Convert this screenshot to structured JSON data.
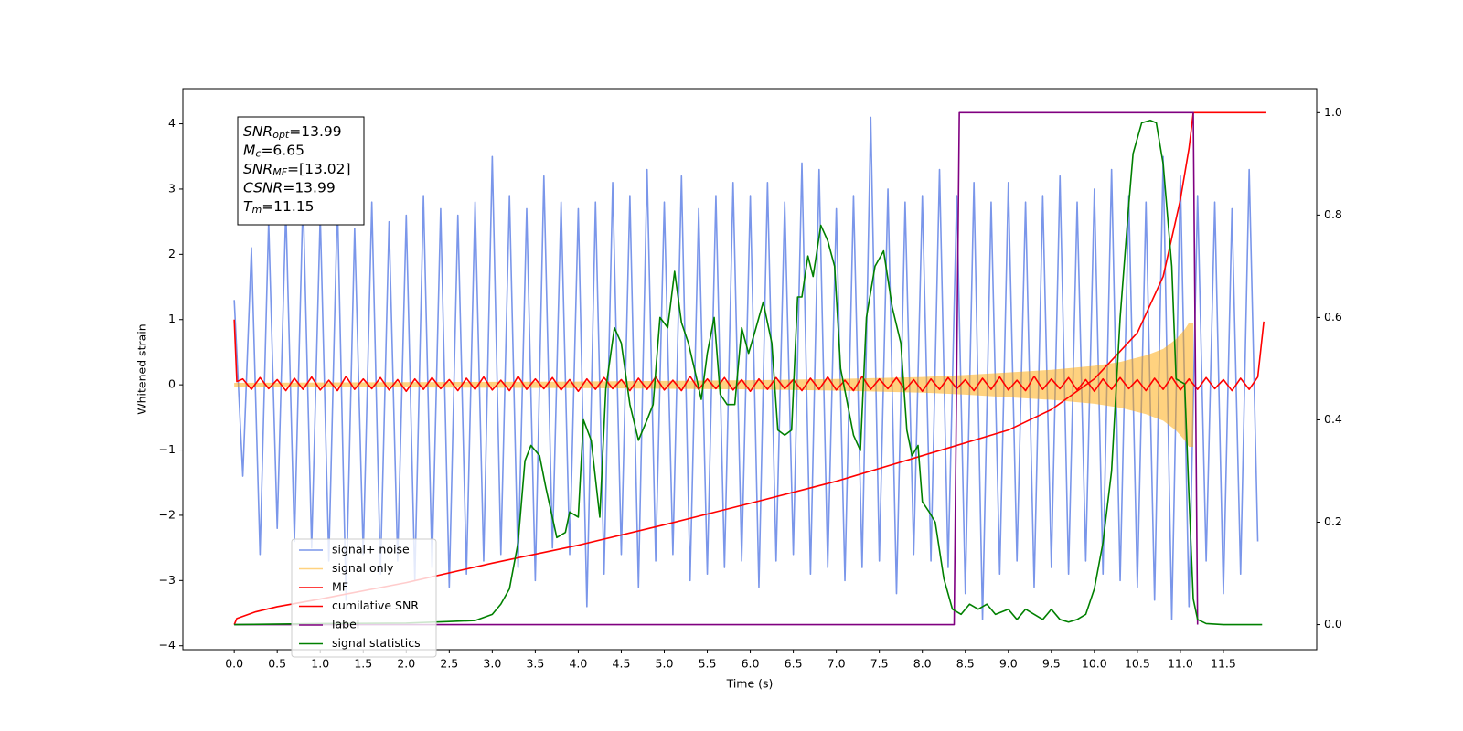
{
  "chart_data": {
    "type": "line",
    "xlabel": "Time (s)",
    "ylabel": "Whitened strain",
    "xlim": [
      -0.597,
      12.585
    ],
    "ylim": [
      -4.06,
      4.54
    ],
    "y2lim": [
      -0.049,
      1.047
    ],
    "xticks": [
      {
        "value": 0,
        "label": "0.0"
      },
      0.5,
      {
        "value": 1,
        "label": "1.0"
      },
      1.5,
      {
        "value": 2,
        "label": "2.0"
      },
      2.5,
      {
        "value": 3,
        "label": "3.0"
      },
      3.5,
      {
        "value": 4,
        "label": "4.0"
      },
      4.5,
      {
        "value": 5,
        "label": "5.0"
      },
      5.5,
      {
        "value": 6,
        "label": "6.0"
      },
      6.5,
      {
        "value": 7,
        "label": "7.0"
      },
      7.5,
      {
        "value": 8,
        "label": "8.0"
      },
      8.5,
      {
        "value": 9,
        "label": "9.0"
      },
      9.5,
      {
        "value": 10,
        "label": "10.0"
      },
      10.5,
      {
        "value": 11,
        "label": "11.0"
      },
      11.5
    ],
    "yticks": [
      {
        "value": -4,
        "label": "−4"
      },
      {
        "value": -3,
        "label": "−3"
      },
      {
        "value": -2,
        "label": "−2"
      },
      {
        "value": -1,
        "label": "−1"
      },
      0,
      1,
      2,
      3,
      4
    ],
    "y2ticks": [
      {
        "value": 0,
        "label": "0.0"
      },
      0.2,
      0.4,
      0.6,
      0.8,
      {
        "value": 1,
        "label": "1.0"
      }
    ],
    "legend": "lower left",
    "annotations": [
      {
        "text": "SNR",
        "sub": "opt",
        "value": "=13.99"
      },
      {
        "text": "M",
        "sub": "c",
        "value": "=6.65"
      },
      {
        "text": "SNR",
        "sub": "MF",
        "value": "=[13.02]"
      },
      {
        "text": "CSNR",
        "value": "=13.99"
      },
      {
        "text": "T",
        "sub": "m",
        "value": "=11.15"
      }
    ],
    "series": [
      {
        "name": "signal+ noise",
        "color": "#4169e1",
        "alpha": 0.7,
        "axis": "y",
        "x": [
          0,
          0.1,
          0.2,
          0.3,
          0.4,
          0.5,
          0.6,
          0.7,
          0.8,
          0.9,
          1,
          1.1,
          1.2,
          1.3,
          1.4,
          1.5,
          1.6,
          1.7,
          1.8,
          1.9,
          2,
          2.1,
          2.2,
          2.3,
          2.4,
          2.5,
          2.6,
          2.7,
          2.8,
          2.9,
          3,
          3.1,
          3.2,
          3.3,
          3.4,
          3.5,
          3.6,
          3.7,
          3.8,
          3.9,
          4,
          4.1,
          4.2,
          4.3,
          4.4,
          4.5,
          4.6,
          4.7,
          4.8,
          4.9,
          5,
          5.1,
          5.2,
          5.3,
          5.4,
          5.5,
          5.6,
          5.7,
          5.8,
          5.9,
          6,
          6.1,
          6.2,
          6.3,
          6.4,
          6.5,
          6.6,
          6.7,
          6.8,
          6.9,
          7,
          7.1,
          7.2,
          7.3,
          7.4,
          7.5,
          7.6,
          7.7,
          7.8,
          7.9,
          8,
          8.1,
          8.2,
          8.3,
          8.4,
          8.5,
          8.6,
          8.7,
          8.8,
          8.9,
          9,
          9.1,
          9.2,
          9.3,
          9.4,
          9.5,
          9.6,
          9.7,
          9.8,
          9.9,
          10,
          10.1,
          10.2,
          10.3,
          10.4,
          10.5,
          10.6,
          10.7,
          10.8,
          10.9,
          11,
          11.1,
          11.2,
          11.3,
          11.4,
          11.5,
          11.6,
          11.7,
          11.8,
          11.9
        ],
        "values": [
          1.3,
          -1.4,
          2.1,
          -2.6,
          2.5,
          -2.2,
          2.7,
          -2.4,
          2.9,
          -2.5,
          2.6,
          -2.7,
          2.8,
          -3.3,
          2.4,
          -2.6,
          2.8,
          -2.9,
          2.5,
          -2.7,
          2.6,
          -3.0,
          2.9,
          -2.8,
          2.7,
          -3.1,
          2.6,
          -2.9,
          2.8,
          -2.7,
          3.5,
          -2.6,
          2.9,
          -2.8,
          2.7,
          -3.0,
          3.2,
          -2.5,
          2.8,
          -2.6,
          2.7,
          -3.4,
          2.8,
          -2.9,
          3.1,
          -2.6,
          2.9,
          -3.1,
          3.3,
          -2.7,
          2.8,
          -2.6,
          3.2,
          -3.0,
          2.7,
          -2.9,
          2.9,
          -2.8,
          3.1,
          -2.7,
          2.9,
          -3.1,
          3.1,
          -2.7,
          2.8,
          -2.6,
          3.4,
          -2.9,
          3.3,
          -2.8,
          2.7,
          -3.0,
          2.9,
          -2.8,
          4.1,
          -2.7,
          3.0,
          -3.2,
          2.8,
          -2.6,
          2.9,
          -2.7,
          3.3,
          -2.8,
          2.9,
          -3.2,
          3.1,
          -3.6,
          2.8,
          -2.9,
          3.1,
          -2.7,
          2.8,
          -3.1,
          2.9,
          -2.8,
          3.2,
          -2.9,
          2.8,
          -2.7,
          3.0,
          -2.9,
          3.3,
          -3.0,
          2.9,
          -3.1,
          2.8,
          -3.3,
          3.5,
          -3.6,
          3.2,
          -3.4,
          2.9,
          -2.7,
          2.8,
          -3.2,
          2.7,
          -2.9,
          3.3,
          -2.4
        ]
      },
      {
        "name": "signal only",
        "color": "#ffa500",
        "alpha": 0.5,
        "axis": "y",
        "fill_between": true,
        "x": [
          0,
          2,
          4,
          6,
          7,
          8,
          8.5,
          9,
          9.5,
          10,
          10.3,
          10.6,
          10.8,
          10.95,
          11.05,
          11.1,
          11.15
        ],
        "values": [
          0.03,
          0.04,
          0.05,
          0.07,
          0.09,
          0.12,
          0.15,
          0.19,
          0.23,
          0.29,
          0.35,
          0.45,
          0.55,
          0.7,
          0.85,
          0.95,
          0.95
        ]
      },
      {
        "name": "MF",
        "color": "#ff0000",
        "axis": "y",
        "x": [
          0,
          0.03,
          0.1,
          0.2,
          0.3,
          0.4,
          0.5,
          0.6,
          0.7,
          0.8,
          0.9,
          1,
          1.1,
          1.2,
          1.3,
          1.4,
          1.5,
          1.6,
          1.7,
          1.8,
          1.9,
          2,
          2.1,
          2.2,
          2.3,
          2.4,
          2.5,
          2.6,
          2.7,
          2.8,
          2.9,
          3,
          3.1,
          3.2,
          3.3,
          3.4,
          3.5,
          3.6,
          3.7,
          3.8,
          3.9,
          4,
          4.1,
          4.2,
          4.3,
          4.4,
          4.5,
          4.6,
          4.7,
          4.8,
          4.9,
          5,
          5.1,
          5.2,
          5.3,
          5.4,
          5.5,
          5.6,
          5.7,
          5.8,
          5.9,
          6,
          6.1,
          6.2,
          6.3,
          6.4,
          6.5,
          6.6,
          6.7,
          6.8,
          6.9,
          7,
          7.1,
          7.2,
          7.3,
          7.4,
          7.5,
          7.6,
          7.7,
          7.8,
          7.9,
          8,
          8.1,
          8.2,
          8.3,
          8.4,
          8.5,
          8.6,
          8.7,
          8.8,
          8.9,
          9,
          9.1,
          9.2,
          9.3,
          9.4,
          9.5,
          9.6,
          9.7,
          9.8,
          9.9,
          10,
          10.1,
          10.2,
          10.3,
          10.4,
          10.5,
          10.6,
          10.7,
          10.8,
          10.9,
          11,
          11.1,
          11.2,
          11.3,
          11.4,
          11.5,
          11.6,
          11.7,
          11.8,
          11.9,
          11.97
        ],
        "values": [
          1.0,
          0.05,
          0.09,
          -0.07,
          0.11,
          -0.06,
          0.08,
          -0.09,
          0.1,
          -0.07,
          0.12,
          -0.08,
          0.07,
          -0.09,
          0.13,
          -0.07,
          0.09,
          -0.06,
          0.11,
          -0.08,
          0.08,
          -0.1,
          0.09,
          -0.07,
          0.11,
          -0.06,
          0.08,
          -0.09,
          0.1,
          -0.07,
          0.12,
          -0.08,
          0.07,
          -0.09,
          0.13,
          -0.07,
          0.09,
          -0.06,
          0.11,
          -0.08,
          0.08,
          -0.1,
          0.09,
          -0.07,
          0.11,
          -0.06,
          0.08,
          -0.09,
          0.1,
          -0.07,
          0.12,
          -0.08,
          0.07,
          -0.09,
          0.13,
          -0.07,
          0.09,
          -0.06,
          0.11,
          -0.08,
          0.08,
          -0.1,
          0.09,
          -0.07,
          0.11,
          -0.06,
          0.08,
          -0.09,
          0.1,
          -0.07,
          0.12,
          -0.08,
          0.07,
          -0.09,
          0.13,
          -0.07,
          0.09,
          -0.06,
          0.11,
          -0.08,
          0.08,
          -0.1,
          0.09,
          -0.07,
          0.11,
          -0.06,
          0.08,
          -0.09,
          0.1,
          -0.07,
          0.12,
          -0.08,
          0.07,
          -0.09,
          0.13,
          -0.07,
          0.09,
          -0.06,
          0.11,
          -0.08,
          0.08,
          -0.1,
          0.09,
          -0.07,
          0.11,
          -0.06,
          0.08,
          -0.09,
          0.1,
          -0.07,
          0.12,
          -0.08,
          0.09,
          -0.07,
          0.11,
          -0.06,
          0.08,
          -0.09,
          0.1,
          -0.07,
          0.12,
          0.97
        ]
      },
      {
        "name": "cumilative SNR",
        "color": "#ff0000",
        "axis": "y2",
        "x": [
          0,
          0.03,
          0.25,
          0.5,
          1,
          2,
          3,
          4,
          5,
          6,
          7,
          8,
          9,
          9.5,
          10,
          10.5,
          10.8,
          11,
          11.1,
          11.15,
          12
        ],
        "values": [
          0,
          0.012,
          0.025,
          0.035,
          0.05,
          0.082,
          0.12,
          0.155,
          0.195,
          0.237,
          0.28,
          0.33,
          0.38,
          0.42,
          0.48,
          0.57,
          0.68,
          0.83,
          0.93,
          1.0,
          1.0
        ]
      },
      {
        "name": "label",
        "color": "#800080",
        "axis": "y2",
        "x": [
          0,
          8.37,
          8.43,
          11.15,
          11.2
        ],
        "values": [
          0,
          0,
          1,
          1,
          0
        ]
      },
      {
        "name": "signal statistics",
        "color": "#008000",
        "axis": "y2",
        "x": [
          0,
          1,
          2,
          2.5,
          2.8,
          3.0,
          3.1,
          3.2,
          3.3,
          3.38,
          3.45,
          3.55,
          3.62,
          3.75,
          3.85,
          3.9,
          4.0,
          4.06,
          4.15,
          4.25,
          4.32,
          4.42,
          4.5,
          4.6,
          4.7,
          4.8,
          4.87,
          4.95,
          5.04,
          5.12,
          5.2,
          5.28,
          5.35,
          5.43,
          5.5,
          5.58,
          5.65,
          5.73,
          5.82,
          5.9,
          5.98,
          6.05,
          6.15,
          6.25,
          6.32,
          6.4,
          6.48,
          6.55,
          6.6,
          6.67,
          6.73,
          6.82,
          6.9,
          6.98,
          7.05,
          7.12,
          7.2,
          7.28,
          7.35,
          7.45,
          7.55,
          7.65,
          7.75,
          7.82,
          7.88,
          7.95,
          8.0,
          8.08,
          8.15,
          8.25,
          8.35,
          8.45,
          8.55,
          8.65,
          8.75,
          8.85,
          9.0,
          9.1,
          9.2,
          9.3,
          9.4,
          9.5,
          9.6,
          9.7,
          9.8,
          9.9,
          10.0,
          10.1,
          10.2,
          10.3,
          10.4,
          10.45,
          10.55,
          10.65,
          10.72,
          10.8,
          10.9,
          10.95,
          11.05,
          11.1,
          11.15,
          11.2,
          11.3,
          11.5,
          11.8,
          11.95
        ],
        "values": [
          0,
          0.002,
          0.003,
          0.006,
          0.008,
          0.02,
          0.04,
          0.07,
          0.16,
          0.32,
          0.35,
          0.33,
          0.27,
          0.17,
          0.18,
          0.22,
          0.21,
          0.4,
          0.36,
          0.21,
          0.46,
          0.58,
          0.55,
          0.43,
          0.36,
          0.4,
          0.43,
          0.6,
          0.58,
          0.69,
          0.59,
          0.55,
          0.5,
          0.44,
          0.53,
          0.6,
          0.45,
          0.43,
          0.43,
          0.58,
          0.53,
          0.57,
          0.63,
          0.55,
          0.38,
          0.37,
          0.38,
          0.64,
          0.64,
          0.72,
          0.68,
          0.78,
          0.75,
          0.7,
          0.5,
          0.44,
          0.37,
          0.34,
          0.6,
          0.7,
          0.73,
          0.62,
          0.55,
          0.38,
          0.33,
          0.35,
          0.24,
          0.22,
          0.2,
          0.09,
          0.03,
          0.02,
          0.04,
          0.03,
          0.04,
          0.02,
          0.03,
          0.01,
          0.03,
          0.02,
          0.01,
          0.03,
          0.01,
          0.005,
          0.01,
          0.02,
          0.07,
          0.16,
          0.3,
          0.6,
          0.82,
          0.92,
          0.98,
          0.985,
          0.98,
          0.9,
          0.7,
          0.48,
          0.47,
          0.25,
          0.05,
          0.01,
          0.002,
          0,
          0,
          0
        ]
      }
    ]
  }
}
